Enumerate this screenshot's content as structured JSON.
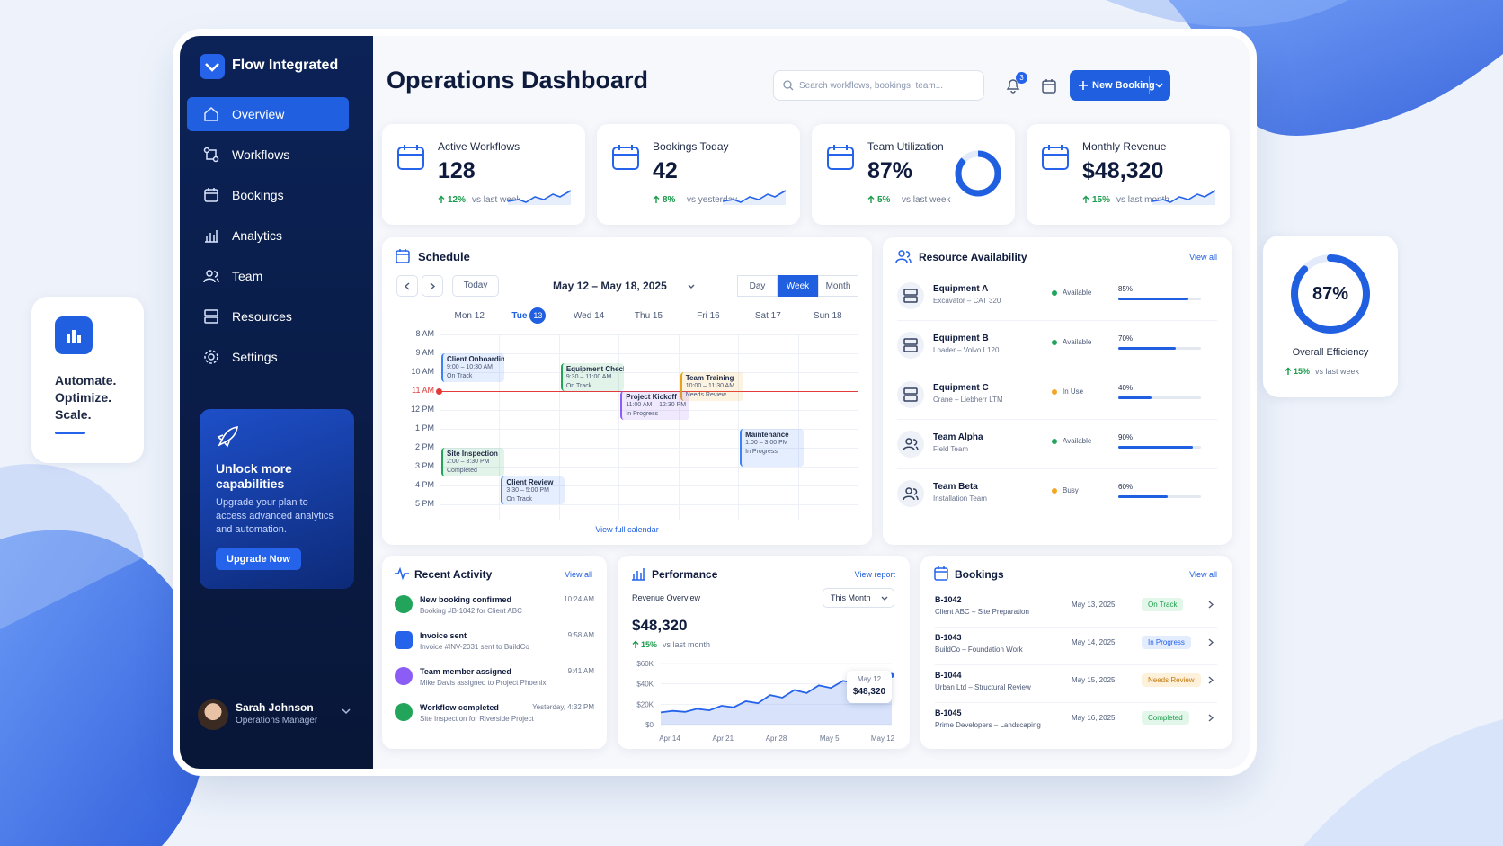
{
  "brand": "Flow Integrated",
  "nav": [
    "Overview",
    "Workflows",
    "Bookings",
    "Analytics",
    "Team",
    "Resources",
    "Settings"
  ],
  "promo": {
    "title": "Unlock more capabilities",
    "text": "Upgrade your plan to access advanced analytics and automation.",
    "button": "Upgrade Now"
  },
  "user": {
    "name": "Sarah Johnson",
    "role": "Operations Manager"
  },
  "header": {
    "title": "Operations Dashboard",
    "search_placeholder": "Search workflows, bookings, team...",
    "notifications": "3",
    "button": "New Booking"
  },
  "kpis": [
    {
      "label": "Active Workflows",
      "value": "128",
      "change": "12%",
      "change_note": "vs last week"
    },
    {
      "label": "Bookings Today",
      "value": "42",
      "change": "8%",
      "change_note": "vs yesterday"
    },
    {
      "label": "Team Utilization",
      "value": "87%",
      "percent": 87,
      "change": "5%",
      "change_note": "vs last week"
    },
    {
      "label": "Monthly Revenue",
      "value": "$48,320",
      "change": "15%",
      "change_note": "vs last month"
    }
  ],
  "schedule": {
    "title": "Schedule",
    "today": "Today",
    "range": "May 12 – May 18, 2025",
    "views": [
      "Day",
      "Week",
      "Month"
    ],
    "days": [
      "Mon 12",
      "Tue",
      "Wed 14",
      "Thu 15",
      "Fri 16",
      "Sat 17",
      "Sun 18"
    ],
    "today_badge": "13",
    "hours": [
      "8 AM",
      "9 AM",
      "10 AM",
      "11 AM",
      "12 PM",
      "1 PM",
      "2 PM",
      "3 PM",
      "4 PM",
      "5 PM"
    ],
    "events": [
      {
        "title": "Client Onboarding",
        "time": "9:00 – 10:30 AM",
        "status": "On Track",
        "color": "#3b82f6"
      },
      {
        "title": "Equipment Check",
        "time": "9:30 – 11:00 AM",
        "status": "On Track",
        "color": "#22a55a"
      },
      {
        "title": "Team Training",
        "time": "10:00 – 11:30 AM",
        "status": "Needs Review",
        "color": "#e6a317"
      },
      {
        "title": "Project Kickoff",
        "time": "11:00 AM – 12:30 PM",
        "status": "In Progress",
        "color": "#8b5cf6"
      },
      {
        "title": "Site Inspection",
        "time": "2:00 – 3:30 PM",
        "status": "Completed",
        "color": "#22a55a"
      },
      {
        "title": "Maintenance",
        "time": "1:00 – 3:00 PM",
        "status": "In Progress",
        "color": "#3b82f6"
      },
      {
        "title": "Client Review",
        "time": "3:30 – 5:00 PM",
        "status": "On Track",
        "color": "#3b82f6"
      }
    ],
    "link": "View full calendar"
  },
  "resources": {
    "title": "Resource Availability",
    "link": "View all",
    "items": [
      {
        "name": "Equipment A",
        "detail": "Excavator – CAT 320",
        "status": "Available",
        "status_color": "#22a55a",
        "percent": 85,
        "percent_label": "85%"
      },
      {
        "name": "Equipment B",
        "detail": "Loader – Volvo L120",
        "status": "Available",
        "status_color": "#22a55a",
        "percent": 70,
        "percent_label": "70%"
      },
      {
        "name": "Equipment C",
        "detail": "Crane – Liebherr LTM",
        "status": "In Use",
        "status_color": "#f5a524",
        "percent": 40,
        "percent_label": "40%"
      },
      {
        "name": "Team Alpha",
        "detail": "Field Team",
        "status": "Available",
        "status_color": "#22a55a",
        "percent": 90,
        "percent_label": "90%"
      },
      {
        "name": "Team Beta",
        "detail": "Installation Team",
        "status": "Busy",
        "status_color": "#f5a524",
        "percent": 60,
        "percent_label": "60%"
      }
    ]
  },
  "activity": {
    "title": "Recent Activity",
    "link": "View all",
    "items": [
      {
        "title": "New booking confirmed",
        "detail": "Booking #B-1042 for Client ABC",
        "time": "10:24 AM",
        "color": "#22a55a"
      },
      {
        "title": "Invoice sent",
        "detail": "Invoice #INV-2031 sent to BuildCo",
        "time": "9:58 AM",
        "color": "#2563eb"
      },
      {
        "title": "Team member assigned",
        "detail": "Mike Davis assigned to Project Phoenix",
        "time": "9:41 AM",
        "color": "#8b5cf6"
      },
      {
        "title": "Workflow completed",
        "detail": "Site Inspection for Riverside Project",
        "time": "Yesterday, 4:32 PM",
        "color": "#22a55a"
      }
    ]
  },
  "performance": {
    "title": "Performance",
    "link": "View report",
    "subtitle": "Revenue Overview",
    "period": "This Month",
    "value": "$48,320",
    "change": "15%",
    "change_note": "vs last month",
    "chart": {
      "type": "area",
      "xticks": [
        "Apr 14",
        "Apr 21",
        "Apr 28",
        "May 5",
        "May 12"
      ],
      "values": [
        12000,
        13500,
        12500,
        15500,
        14000,
        18500,
        17000,
        23000,
        21000,
        29000,
        26500,
        34000,
        31000,
        38500,
        36000,
        43000,
        40500,
        48000,
        44500,
        48320
      ],
      "ylim": [
        0,
        60000
      ],
      "yticks": [
        {
          "value": 0,
          "label": "$0"
        },
        {
          "value": 20000,
          "label": "$20K"
        },
        {
          "value": 40000,
          "label": "$40K"
        },
        {
          "value": 60000,
          "label": "$60K"
        }
      ],
      "tooltip": {
        "label": "May 12",
        "value": "$48,320"
      },
      "color": "#2563eb"
    }
  },
  "bookings": {
    "title": "Bookings",
    "link": "View all",
    "items": [
      {
        "id": "B-1042",
        "detail": "Client ABC – Site Preparation",
        "date": "May 13, 2025",
        "status": "On Track",
        "status_color": "#1a9b4b",
        "status_bg": "#e3f6ea"
      },
      {
        "id": "B-1043",
        "detail": "BuildCo – Foundation Work",
        "date": "May 14, 2025",
        "status": "In Progress",
        "status_color": "#2563eb",
        "status_bg": "#e4edfd"
      },
      {
        "id": "B-1044",
        "detail": "Urban Ltd – Structural Review",
        "date": "May 15, 2025",
        "status": "Needs Review",
        "status_color": "#c2790a",
        "status_bg": "#fdf1dc"
      },
      {
        "id": "B-1045",
        "detail": "Prime Developers – Landscaping",
        "date": "May 16, 2025",
        "status": "Completed",
        "status_color": "#1a9b4b",
        "status_bg": "#e3f6ea"
      }
    ]
  },
  "promo_left": {
    "lines": [
      "Automate.",
      "Optimize.",
      "Scale."
    ]
  },
  "efficiency": {
    "percent": 87,
    "value": "87%",
    "title": "Overall Efficiency",
    "change": "15%",
    "change_note": "vs last week"
  }
}
